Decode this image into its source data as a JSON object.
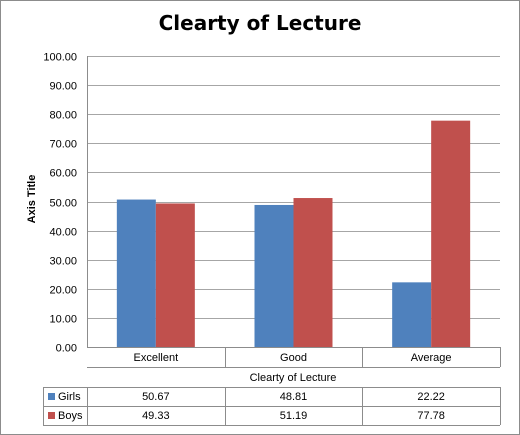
{
  "chart_data": {
    "type": "bar",
    "title": "Clearty of Lecture",
    "xlabel": "Clearty of Lecture",
    "ylabel": "Axis Title",
    "categories": [
      "Excellent",
      "Good",
      "Average"
    ],
    "series": [
      {
        "name": "Girls",
        "values": [
          50.67,
          48.81,
          22.22
        ],
        "color": "#4f81bd"
      },
      {
        "name": "Boys",
        "values": [
          49.33,
          51.19,
          77.78
        ],
        "color": "#c0504d"
      }
    ],
    "ylim": [
      0,
      100
    ],
    "yticks": [
      "0.00",
      "10.00",
      "20.00",
      "30.00",
      "40.00",
      "50.00",
      "60.00",
      "70.00",
      "80.00",
      "90.00",
      "100.00"
    ],
    "data_table": [
      {
        "series": "Girls",
        "cells": [
          "50.67",
          "48.81",
          "22.22"
        ]
      },
      {
        "series": "Boys",
        "cells": [
          "49.33",
          "51.19",
          "77.78"
        ]
      }
    ],
    "grid": true,
    "legend": "data table"
  }
}
